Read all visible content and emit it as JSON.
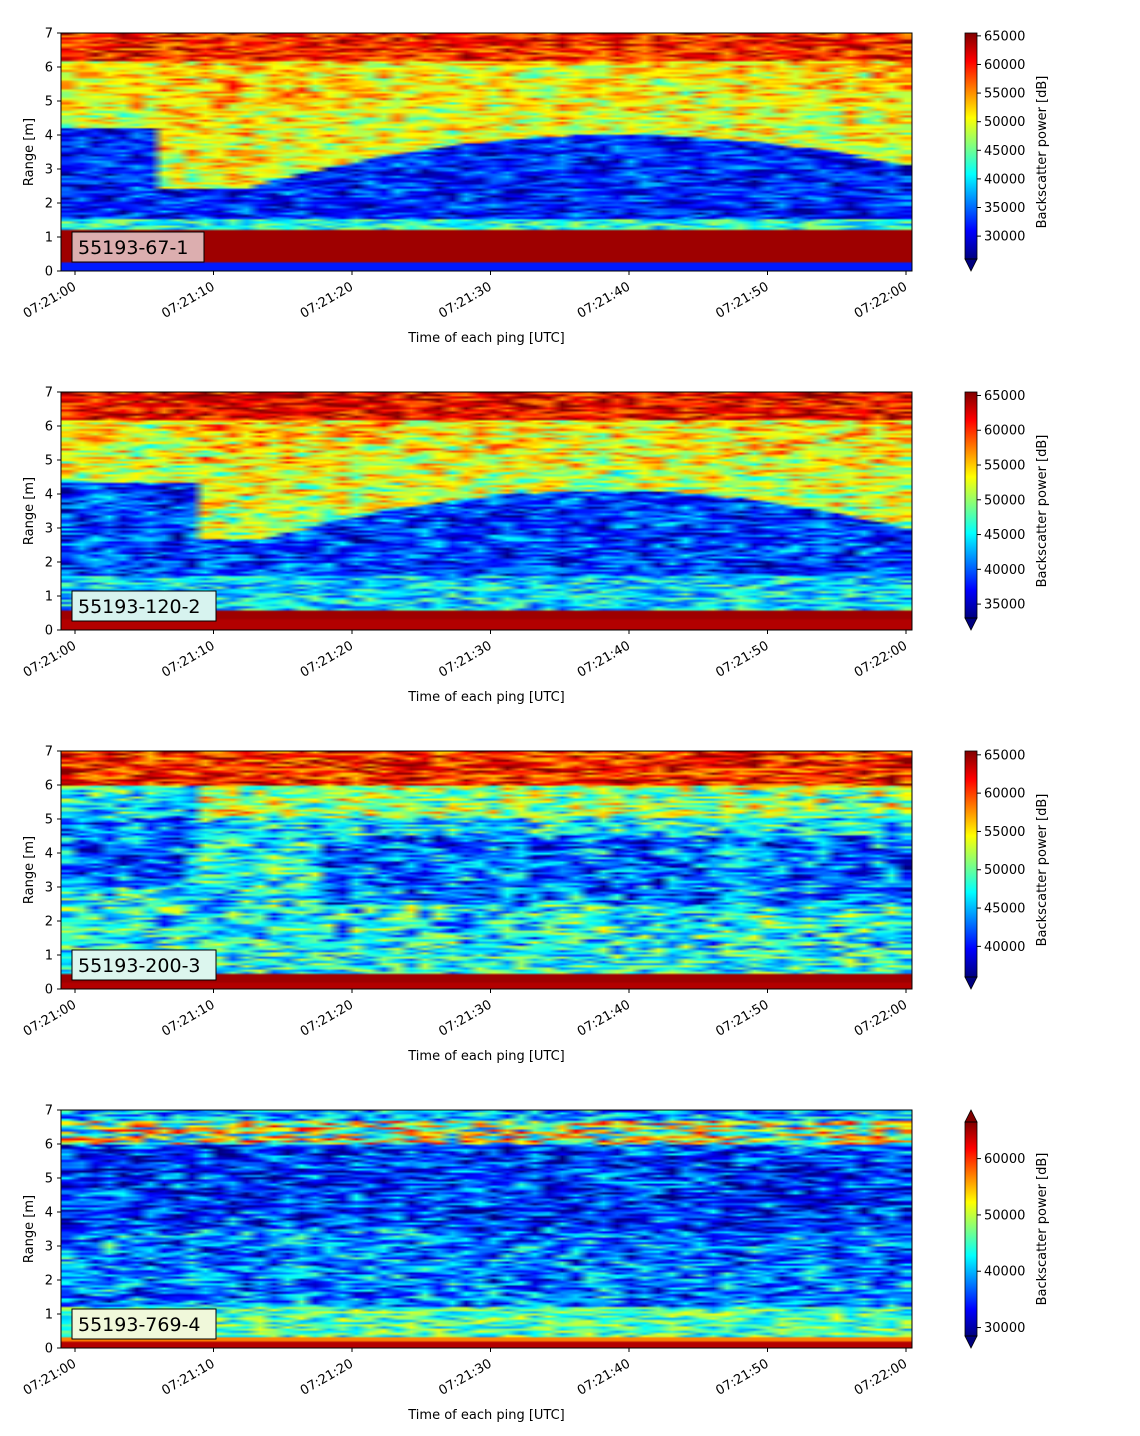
{
  "chart_data": [
    {
      "type": "heatmap",
      "label": "55193-67-1",
      "label_box_color": "#dcaeaf",
      "xlabel": "Time of each ping [UTC]",
      "ylabel": "Range [m]",
      "colorbar_label": "Backscatter power [dB]",
      "colormap": "jet",
      "colorbar_ticks": [
        "30000",
        "35000",
        "40000",
        "45000",
        "50000",
        "55000",
        "60000",
        "65000"
      ],
      "vmin": 26000,
      "vmax": 65500,
      "extend": "min",
      "x_ticks": [
        "07:21:00",
        "07:21:10",
        "07:21:20",
        "07:21:30",
        "07:21:40",
        "07:21:50",
        "07:22:00"
      ],
      "y_ticks": [
        "0",
        "1",
        "2",
        "3",
        "4",
        "5",
        "6",
        "7"
      ],
      "ylim": [
        0,
        7
      ]
    },
    {
      "type": "heatmap",
      "label": "55193-120-2",
      "label_box_color": "#d7f3ef",
      "xlabel": "Time of each ping [UTC]",
      "ylabel": "Range [m]",
      "colorbar_label": "Backscatter power [dB]",
      "colormap": "jet",
      "colorbar_ticks": [
        "35000",
        "40000",
        "45000",
        "50000",
        "55000",
        "60000",
        "65000"
      ],
      "vmin": 33000,
      "vmax": 65500,
      "extend": "min",
      "x_ticks": [
        "07:21:00",
        "07:21:10",
        "07:21:20",
        "07:21:30",
        "07:21:40",
        "07:21:50",
        "07:22:00"
      ],
      "y_ticks": [
        "0",
        "1",
        "2",
        "3",
        "4",
        "5",
        "6",
        "7"
      ],
      "ylim": [
        0,
        7
      ]
    },
    {
      "type": "heatmap",
      "label": "55193-200-3",
      "label_box_color": "#dcf6ee",
      "xlabel": "Time of each ping [UTC]",
      "ylabel": "Range [m]",
      "colorbar_label": "Backscatter power [dB]",
      "colormap": "jet",
      "colorbar_ticks": [
        "40000",
        "45000",
        "50000",
        "55000",
        "60000",
        "65000"
      ],
      "vmin": 36000,
      "vmax": 65500,
      "extend": "min",
      "x_ticks": [
        "07:21:00",
        "07:21:10",
        "07:21:20",
        "07:21:30",
        "07:21:40",
        "07:21:50",
        "07:22:00"
      ],
      "y_ticks": [
        "0",
        "1",
        "2",
        "3",
        "4",
        "5",
        "6",
        "7"
      ],
      "ylim": [
        0,
        7
      ]
    },
    {
      "type": "heatmap",
      "label": "55193-769-4",
      "label_box_color": "#f0f8da",
      "xlabel": "Time of each ping [UTC]",
      "ylabel": "Range [m]",
      "colorbar_label": "Backscatter power [dB]",
      "colormap": "jet",
      "colorbar_ticks": [
        "30000",
        "40000",
        "50000",
        "60000"
      ],
      "vmin": 28500,
      "vmax": 66500,
      "extend": "both",
      "x_ticks": [
        "07:21:00",
        "07:21:10",
        "07:21:20",
        "07:21:30",
        "07:21:40",
        "07:21:50",
        "07:22:00"
      ],
      "y_ticks": [
        "0",
        "1",
        "2",
        "3",
        "4",
        "5",
        "6",
        "7"
      ],
      "ylim": [
        0,
        7
      ]
    }
  ]
}
